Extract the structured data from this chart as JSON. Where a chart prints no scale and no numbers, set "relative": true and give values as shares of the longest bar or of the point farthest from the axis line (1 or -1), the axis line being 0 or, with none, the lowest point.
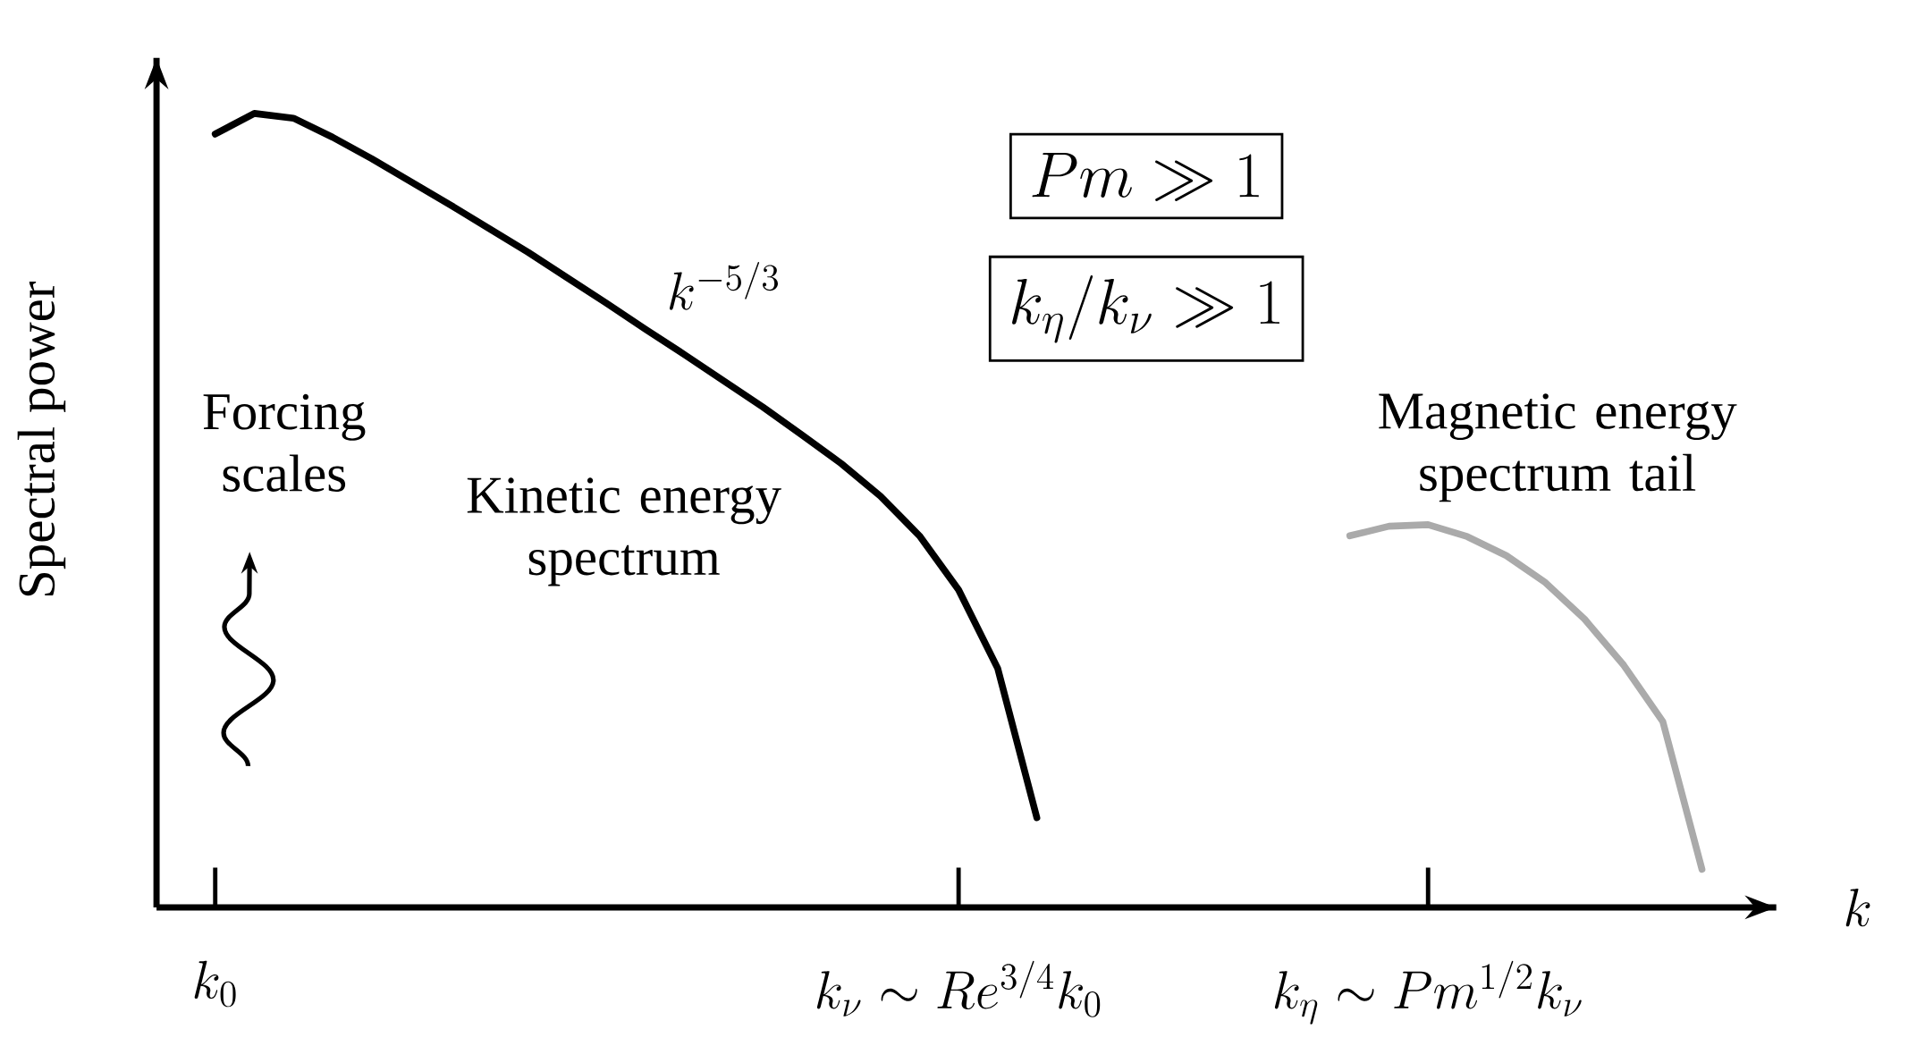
{
  "chart_data": {
    "type": "line",
    "relative": true,
    "xlabel": "k",
    "ylabel": "Spectral power",
    "categories": [
      null,
      "k_0",
      null,
      null,
      null,
      null,
      null,
      null,
      null,
      null,
      null,
      null,
      null,
      null,
      null,
      null,
      null,
      null,
      null,
      null,
      "k_\\nu \\sim Re^{3/4} k_0",
      null,
      null,
      null,
      null,
      null,
      null,
      null,
      null,
      null,
      null,
      null,
      "k_\\eta \\sim Pm^{1/2} k_\\nu",
      null,
      null,
      null,
      null,
      null,
      null,
      null,
      null
    ],
    "series": [
      {
        "color": "#000000",
        "values": [
          null,
          0.974,
          1.0,
          0.994,
          0.97,
          0.943,
          0.914,
          0.885,
          0.855,
          0.825,
          0.793,
          0.761,
          0.728,
          0.696,
          0.663,
          0.63,
          0.595,
          0.559,
          0.518,
          0.468,
          0.4,
          0.301,
          0.113,
          null,
          null,
          null,
          null,
          null,
          null,
          null,
          null,
          null,
          null,
          null,
          null,
          null,
          null,
          null,
          null,
          null,
          null
        ]
      },
      {
        "color": "#aaaaaa",
        "values": [
          null,
          null,
          null,
          null,
          null,
          null,
          null,
          null,
          null,
          null,
          null,
          null,
          null,
          null,
          null,
          null,
          null,
          null,
          null,
          null,
          null,
          null,
          null,
          null,
          null,
          null,
          null,
          null,
          null,
          null,
          0.468,
          0.48,
          0.482,
          0.467,
          0.443,
          0.409,
          0.363,
          0.305,
          0.234,
          0.048,
          null
        ]
      }
    ],
    "annotations": [
      "Forcing scales",
      "Kinetic energy spectrum",
      "Magnetic energy spectrum tail",
      "k^{-5/3}",
      "Pm \\gg 1",
      "k_\\eta/k_\\nu \\gg 1"
    ],
    "line_style": "solid",
    "marker": "none",
    "grid": false
  }
}
